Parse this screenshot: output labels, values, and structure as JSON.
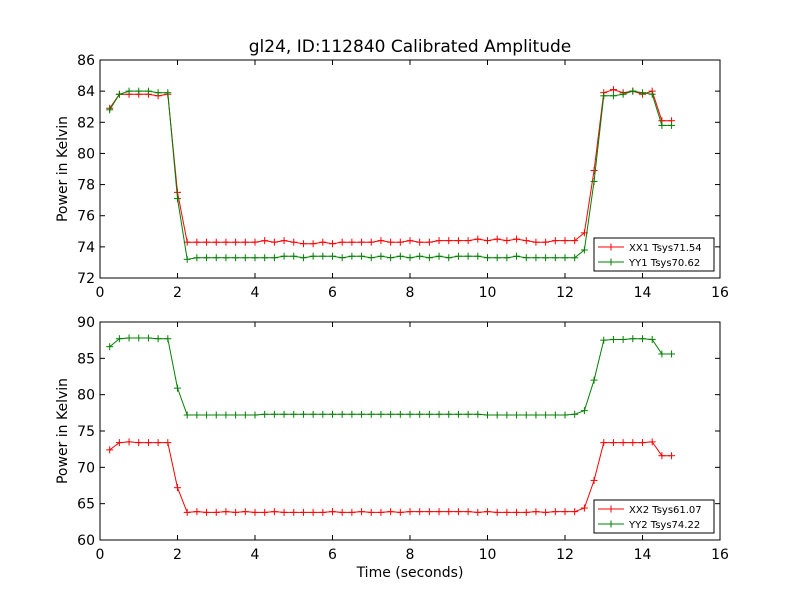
{
  "figure": {
    "title": "gl24, ID:112840 Calibrated Amplitude",
    "xlabel": "Time (seconds)"
  },
  "chart_data": [
    {
      "type": "line",
      "ylabel": "Power in Kelvin",
      "xlim": [
        0,
        16
      ],
      "ylim": [
        72,
        86
      ],
      "xticks": [
        0,
        2,
        4,
        6,
        8,
        10,
        12,
        14,
        16
      ],
      "yticks": [
        72,
        74,
        76,
        78,
        80,
        82,
        84,
        86
      ],
      "legend_position": "lower-right",
      "x": [
        0.25,
        0.5,
        0.75,
        1.0,
        1.25,
        1.5,
        1.75,
        2.0,
        2.25,
        2.5,
        2.75,
        3.0,
        3.25,
        3.5,
        3.75,
        4.0,
        4.25,
        4.5,
        4.75,
        5.0,
        5.25,
        5.5,
        5.75,
        6.0,
        6.25,
        6.5,
        6.75,
        7.0,
        7.25,
        7.5,
        7.75,
        8.0,
        8.25,
        8.5,
        8.75,
        9.0,
        9.25,
        9.5,
        9.75,
        10.0,
        10.25,
        10.5,
        10.75,
        11.0,
        11.25,
        11.5,
        11.75,
        12.0,
        12.25,
        12.5,
        12.75,
        13.0,
        13.25,
        13.5,
        13.75,
        14.0,
        14.25,
        14.5,
        14.75
      ],
      "series": [
        {
          "name": "XX1 Tsys71.54",
          "color": "#ff0000",
          "values": [
            82.9,
            83.8,
            83.8,
            83.8,
            83.8,
            83.7,
            83.8,
            77.5,
            74.3,
            74.3,
            74.3,
            74.3,
            74.3,
            74.3,
            74.3,
            74.3,
            74.4,
            74.3,
            74.4,
            74.3,
            74.2,
            74.2,
            74.3,
            74.2,
            74.3,
            74.3,
            74.3,
            74.3,
            74.4,
            74.3,
            74.3,
            74.4,
            74.3,
            74.3,
            74.4,
            74.4,
            74.4,
            74.4,
            74.5,
            74.4,
            74.5,
            74.4,
            74.5,
            74.4,
            74.3,
            74.3,
            74.4,
            74.4,
            74.4,
            74.9,
            78.9,
            83.9,
            84.1,
            83.9,
            84.0,
            83.8,
            84.0,
            82.1,
            82.1
          ]
        },
        {
          "name": "YY1 Tsys70.62",
          "color": "#008000",
          "values": [
            82.8,
            83.8,
            84.0,
            84.0,
            84.0,
            83.9,
            83.9,
            77.1,
            73.2,
            73.3,
            73.3,
            73.3,
            73.3,
            73.3,
            73.3,
            73.3,
            73.3,
            73.3,
            73.4,
            73.4,
            73.3,
            73.4,
            73.4,
            73.4,
            73.3,
            73.4,
            73.4,
            73.3,
            73.4,
            73.3,
            73.4,
            73.3,
            73.4,
            73.3,
            73.4,
            73.3,
            73.4,
            73.4,
            73.4,
            73.3,
            73.3,
            73.3,
            73.4,
            73.3,
            73.3,
            73.3,
            73.3,
            73.3,
            73.3,
            73.8,
            78.2,
            83.7,
            83.7,
            83.8,
            84.0,
            83.9,
            83.8,
            81.8,
            81.8
          ]
        }
      ]
    },
    {
      "type": "line",
      "ylabel": "Power in Kelvin",
      "xlabel": "Time (seconds)",
      "xlim": [
        0,
        16
      ],
      "ylim": [
        60,
        90
      ],
      "xticks": [
        0,
        2,
        4,
        6,
        8,
        10,
        12,
        14,
        16
      ],
      "yticks": [
        60,
        65,
        70,
        75,
        80,
        85,
        90
      ],
      "legend_position": "lower-right",
      "x": [
        0.25,
        0.5,
        0.75,
        1.0,
        1.25,
        1.5,
        1.75,
        2.0,
        2.25,
        2.5,
        2.75,
        3.0,
        3.25,
        3.5,
        3.75,
        4.0,
        4.25,
        4.5,
        4.75,
        5.0,
        5.25,
        5.5,
        5.75,
        6.0,
        6.25,
        6.5,
        6.75,
        7.0,
        7.25,
        7.5,
        7.75,
        8.0,
        8.25,
        8.5,
        8.75,
        9.0,
        9.25,
        9.5,
        9.75,
        10.0,
        10.25,
        10.5,
        10.75,
        11.0,
        11.25,
        11.5,
        11.75,
        12.0,
        12.25,
        12.5,
        12.75,
        13.0,
        13.25,
        13.5,
        13.75,
        14.0,
        14.25,
        14.5,
        14.75
      ],
      "series": [
        {
          "name": "XX2 Tsys61.07",
          "color": "#ff0000",
          "values": [
            72.4,
            73.4,
            73.5,
            73.4,
            73.4,
            73.4,
            73.4,
            67.2,
            63.8,
            63.9,
            63.8,
            63.8,
            63.9,
            63.8,
            63.9,
            63.8,
            63.8,
            63.9,
            63.8,
            63.8,
            63.8,
            63.8,
            63.8,
            63.9,
            63.8,
            63.8,
            63.9,
            63.8,
            63.8,
            63.9,
            63.8,
            63.9,
            63.9,
            63.9,
            63.9,
            63.9,
            63.9,
            63.9,
            63.8,
            63.9,
            63.8,
            63.8,
            63.8,
            63.8,
            63.9,
            63.8,
            63.9,
            63.9,
            63.9,
            64.4,
            68.2,
            73.4,
            73.4,
            73.4,
            73.4,
            73.4,
            73.5,
            71.6,
            71.6
          ]
        },
        {
          "name": "YY2 Tsys74.22",
          "color": "#008000",
          "values": [
            86.6,
            87.7,
            87.8,
            87.8,
            87.8,
            87.7,
            87.7,
            80.9,
            77.2,
            77.2,
            77.2,
            77.2,
            77.2,
            77.2,
            77.2,
            77.2,
            77.3,
            77.3,
            77.3,
            77.3,
            77.3,
            77.3,
            77.3,
            77.3,
            77.3,
            77.3,
            77.3,
            77.3,
            77.3,
            77.3,
            77.3,
            77.3,
            77.3,
            77.3,
            77.3,
            77.3,
            77.3,
            77.3,
            77.3,
            77.2,
            77.2,
            77.2,
            77.2,
            77.2,
            77.2,
            77.2,
            77.2,
            77.2,
            77.3,
            77.8,
            82.0,
            87.5,
            87.6,
            87.6,
            87.7,
            87.7,
            87.6,
            85.6,
            85.6
          ]
        }
      ]
    }
  ]
}
